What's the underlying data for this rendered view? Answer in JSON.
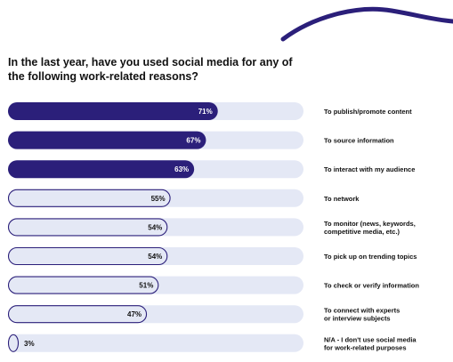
{
  "title": "In the last year, have you used social media for any of the following work-related reasons?",
  "colors": {
    "accent": "#2b1f7a",
    "track": "#e4e8f5",
    "outline": "#2b1f7a",
    "text": "#111111",
    "label_on_dark": "#ffffff"
  },
  "chart_data": {
    "type": "bar",
    "orientation": "horizontal",
    "categories": [
      "To publish/promote content",
      "To source information",
      "To interact with my audience",
      "To network",
      "To monitor (news, keywords, competitive media, etc.)",
      "To pick up on trending topics",
      "To check or verify information",
      "To connect with experts or interview subjects",
      "N/A - I don't use social media for work-related purposes"
    ],
    "category_lines": [
      [
        "To publish/promote content"
      ],
      [
        "To source information"
      ],
      [
        "To interact with my audience"
      ],
      [
        "To network"
      ],
      [
        "To monitor (news, keywords,",
        "competitive media, etc.)"
      ],
      [
        "To pick up on trending topics"
      ],
      [
        "To check or verify information"
      ],
      [
        "To connect with experts",
        "or interview subjects"
      ],
      [
        "N/A - I don't use social media",
        "for work-related purposes"
      ]
    ],
    "values": [
      71,
      67,
      63,
      55,
      54,
      54,
      51,
      47,
      3
    ],
    "value_labels": [
      "71%",
      "67%",
      "63%",
      "55%",
      "54%",
      "54%",
      "51%",
      "47%",
      "3%"
    ],
    "highlighted": [
      true,
      true,
      true,
      false,
      false,
      false,
      false,
      false,
      false
    ],
    "xlim": [
      0,
      100
    ],
    "grid": false,
    "legend": "none"
  }
}
